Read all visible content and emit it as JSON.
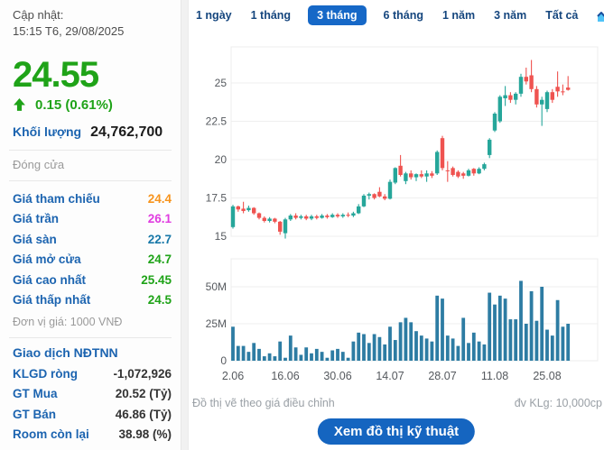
{
  "sidebar": {
    "updated_label": "Cập nhật:",
    "updated_time": "15:15 T6, 29/08/2025",
    "price": "24.55",
    "change": "0.15 (0.61%)",
    "volume_label": "Khối lượng",
    "volume_value": "24,762,700",
    "session_status": "Đóng cửa",
    "stats": [
      {
        "label": "Giá tham chiếu",
        "value": "24.4",
        "color": "#f7941d"
      },
      {
        "label": "Giá trần",
        "value": "26.1",
        "color": "#e03ce0"
      },
      {
        "label": "Giá sàn",
        "value": "22.7",
        "color": "#1878a8"
      },
      {
        "label": "Giá mở cửa",
        "value": "24.7",
        "color": "#1fa318"
      },
      {
        "label": "Giá cao nhất",
        "value": "25.45",
        "color": "#1fa318"
      },
      {
        "label": "Giá thấp nhất",
        "value": "24.5",
        "color": "#1fa318"
      }
    ],
    "price_unit_note": "Đơn vị giá: 1000 VNĐ",
    "foreign_section_title": "Giao dịch NĐTNN",
    "foreign_stats": [
      {
        "label": "KLGD ròng",
        "value": "-1,072,926"
      },
      {
        "label": "GT Mua",
        "value": "20.52 (Tỷ)"
      },
      {
        "label": "GT Bán",
        "value": "46.86 (Tỷ)"
      },
      {
        "label": "Room còn lại",
        "value": "38.98 (%)"
      }
    ]
  },
  "tabs": [
    {
      "label": "1 ngày",
      "active": false
    },
    {
      "label": "1 tháng",
      "active": false
    },
    {
      "label": "3 tháng",
      "active": true
    },
    {
      "label": "6 tháng",
      "active": false
    },
    {
      "label": "1 năm",
      "active": false
    },
    {
      "label": "3 năm",
      "active": false
    },
    {
      "label": "Tất cả",
      "active": false
    }
  ],
  "footer": {
    "left_note": "Đồ thị vẽ theo giá điều chỉnh",
    "right_note": "đv KLg: 10,000cp",
    "button_label": "Xem đồ thị kỹ thuật"
  },
  "chart_data": {
    "type": "candlestick+volume",
    "title": "",
    "price_axis_ticks": [
      15,
      17.5,
      20,
      22.5,
      25
    ],
    "volume_axis_ticks": [
      "0",
      "25M",
      "50M"
    ],
    "x_tick_indices": [
      0,
      10,
      20,
      30,
      40,
      50,
      60
    ],
    "x_tick_labels": [
      "2.06",
      "16.06",
      "30.06",
      "14.07",
      "28.07",
      "11.08",
      "25.08"
    ],
    "price_ylim": [
      14.7,
      27.4
    ],
    "volume_ylim_m": [
      0,
      70
    ],
    "grid": true,
    "colors": {
      "up": "#26a69a",
      "down": "#ef5350",
      "volume_bar": "#2d7ca3"
    },
    "dates": [
      "2.06",
      "3.06",
      "4.06",
      "5.06",
      "6.06",
      "9.06",
      "10.06",
      "11.06",
      "12.06",
      "13.06",
      "16.06",
      "17.06",
      "18.06",
      "19.06",
      "20.06",
      "23.06",
      "24.06",
      "25.06",
      "26.06",
      "27.06",
      "30.06",
      "1.07",
      "2.07",
      "3.07",
      "4.07",
      "7.07",
      "8.07",
      "9.07",
      "10.07",
      "11.07",
      "14.07",
      "15.07",
      "16.07",
      "17.07",
      "18.07",
      "21.07",
      "22.07",
      "23.07",
      "24.07",
      "25.07",
      "28.07",
      "29.07",
      "30.07",
      "31.07",
      "1.08",
      "4.08",
      "5.08",
      "6.08",
      "7.08",
      "8.08",
      "11.08",
      "12.08",
      "13.08",
      "14.08",
      "15.08",
      "18.08",
      "19.08",
      "20.08",
      "21.08",
      "22.08",
      "25.08",
      "26.08",
      "27.08",
      "28.08",
      "29.08"
    ],
    "ohlc": [
      [
        15.6,
        17.05,
        15.5,
        16.95
      ],
      [
        16.95,
        17.0,
        16.6,
        16.75
      ],
      [
        16.8,
        17.25,
        16.5,
        16.65
      ],
      [
        16.7,
        17.0,
        16.6,
        16.85
      ],
      [
        16.85,
        16.9,
        16.4,
        16.5
      ],
      [
        16.5,
        16.55,
        16.1,
        16.2
      ],
      [
        16.2,
        16.3,
        15.9,
        16.0
      ],
      [
        16.0,
        16.25,
        15.9,
        16.15
      ],
      [
        16.15,
        16.2,
        15.85,
        15.95
      ],
      [
        15.95,
        16.0,
        15.1,
        15.3
      ],
      [
        15.2,
        16.2,
        14.85,
        16.1
      ],
      [
        16.1,
        16.45,
        16.0,
        16.35
      ],
      [
        16.35,
        16.5,
        16.1,
        16.2
      ],
      [
        16.2,
        16.4,
        16.1,
        16.3
      ],
      [
        16.3,
        16.4,
        16.05,
        16.15
      ],
      [
        16.15,
        16.4,
        16.05,
        16.3
      ],
      [
        16.3,
        16.4,
        16.1,
        16.2
      ],
      [
        16.2,
        16.45,
        16.15,
        16.35
      ],
      [
        16.35,
        16.45,
        16.15,
        16.25
      ],
      [
        16.25,
        16.5,
        16.2,
        16.4
      ],
      [
        16.4,
        16.5,
        16.2,
        16.3
      ],
      [
        16.3,
        16.5,
        16.2,
        16.4
      ],
      [
        16.4,
        16.55,
        16.25,
        16.35
      ],
      [
        16.35,
        16.6,
        16.25,
        16.5
      ],
      [
        16.5,
        17.1,
        16.45,
        16.95
      ],
      [
        16.95,
        17.75,
        16.9,
        17.65
      ],
      [
        17.65,
        17.85,
        17.4,
        17.75
      ],
      [
        17.75,
        17.8,
        17.4,
        17.5
      ],
      [
        17.9,
        18.2,
        17.55,
        17.6
      ],
      [
        17.6,
        17.75,
        17.35,
        17.45
      ],
      [
        17.45,
        18.7,
        17.4,
        18.55
      ],
      [
        18.5,
        19.5,
        18.4,
        19.45
      ],
      [
        19.6,
        20.3,
        18.9,
        19.0
      ],
      [
        18.6,
        19.2,
        18.4,
        19.1
      ],
      [
        19.1,
        19.3,
        18.7,
        18.85
      ],
      [
        18.85,
        19.1,
        18.6,
        19.05
      ],
      [
        19.05,
        19.3,
        18.8,
        18.9
      ],
      [
        18.9,
        19.3,
        18.55,
        19.1
      ],
      [
        19.1,
        19.25,
        18.8,
        18.95
      ],
      [
        19.1,
        20.6,
        19.0,
        20.5
      ],
      [
        21.4,
        21.55,
        19.3,
        19.45
      ],
      [
        19.3,
        19.9,
        18.55,
        19.25
      ],
      [
        19.45,
        19.55,
        18.9,
        19.0
      ],
      [
        19.2,
        19.3,
        18.8,
        18.9
      ],
      [
        19.1,
        19.2,
        18.75,
        18.95
      ],
      [
        18.95,
        19.4,
        18.9,
        19.3
      ],
      [
        19.4,
        19.45,
        18.95,
        19.1
      ],
      [
        19.1,
        19.5,
        19.05,
        19.4
      ],
      [
        19.4,
        19.8,
        19.3,
        19.7
      ],
      [
        20.3,
        21.4,
        20.1,
        21.3
      ],
      [
        21.9,
        23.1,
        21.8,
        23.0
      ],
      [
        22.5,
        24.2,
        22.4,
        24.1
      ],
      [
        24.0,
        24.8,
        23.5,
        24.2
      ],
      [
        24.2,
        24.4,
        23.7,
        23.9
      ],
      [
        23.9,
        24.4,
        23.6,
        24.3
      ],
      [
        24.3,
        25.6,
        24.1,
        25.4
      ],
      [
        25.4,
        26.0,
        24.9,
        25.1
      ],
      [
        25.5,
        26.5,
        24.4,
        24.6
      ],
      [
        24.6,
        24.8,
        23.4,
        23.6
      ],
      [
        23.6,
        24.1,
        22.2,
        23.9
      ],
      [
        23.3,
        24.5,
        23.1,
        24.4
      ],
      [
        24.4,
        24.6,
        23.7,
        23.9
      ],
      [
        24.75,
        25.75,
        24.1,
        24.45
      ],
      [
        24.45,
        24.9,
        24.2,
        24.4
      ],
      [
        24.7,
        25.45,
        24.5,
        24.55
      ]
    ],
    "volumes_m": [
      23,
      10,
      10,
      6,
      12,
      8,
      3,
      5,
      3,
      13,
      2,
      17,
      9,
      4,
      9,
      5,
      8,
      6,
      2,
      7,
      8,
      6,
      2,
      13,
      19,
      18,
      12,
      18,
      16,
      11,
      23,
      14,
      26,
      29,
      26,
      20,
      17,
      15,
      13,
      44,
      42,
      17,
      15,
      10,
      29,
      12,
      19,
      13,
      11,
      46,
      38,
      44,
      42,
      28,
      28,
      54,
      25,
      47,
      27,
      50,
      21,
      17,
      41,
      23,
      25
    ]
  }
}
